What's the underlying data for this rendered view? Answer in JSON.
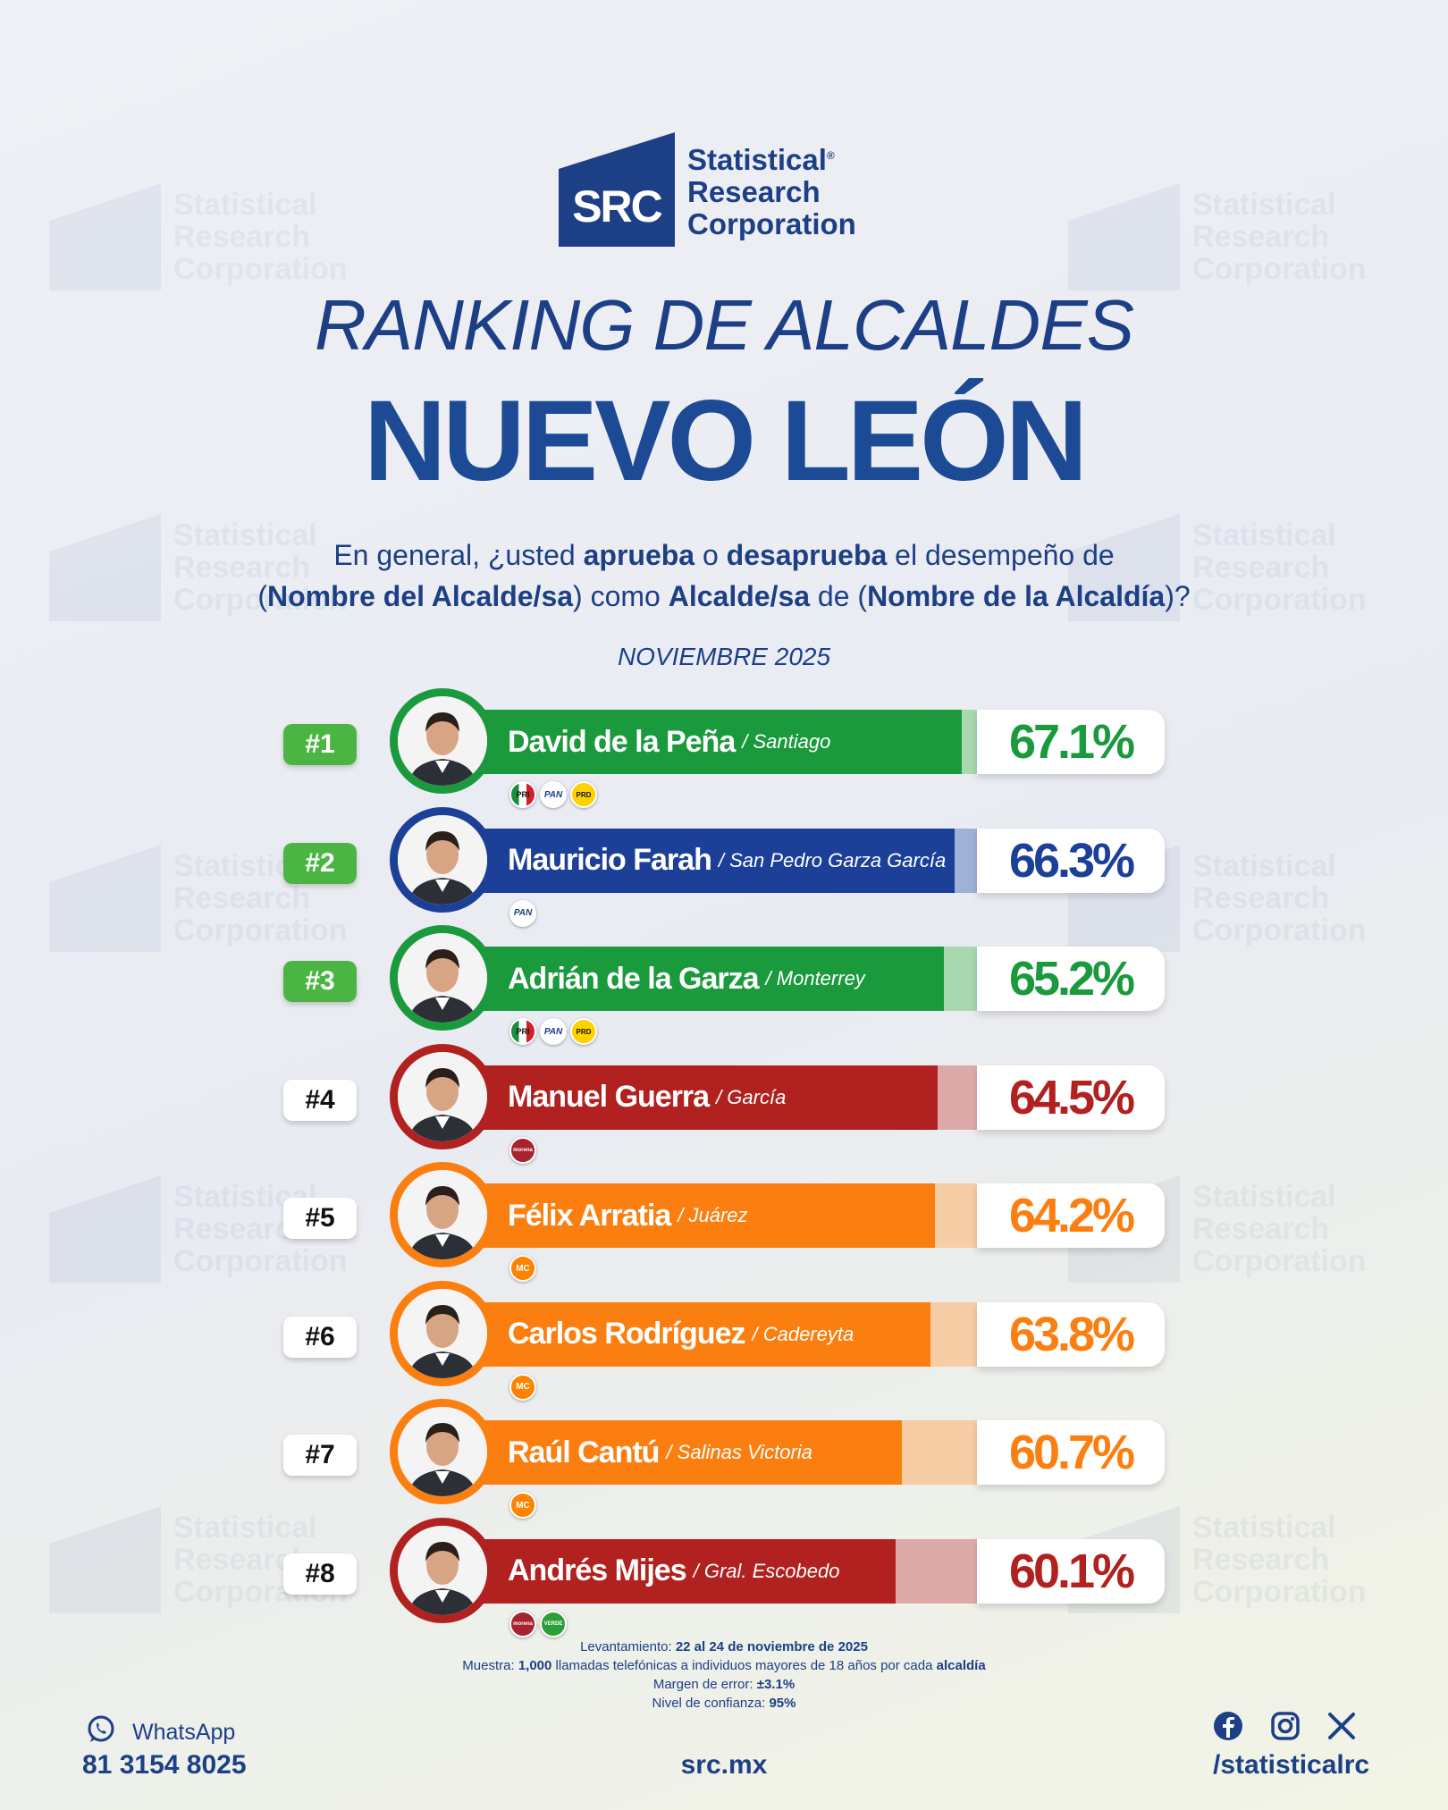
{
  "brand": {
    "mark": "SRC",
    "line1": "Statistical",
    "line2": "Research",
    "line3": "Corporation",
    "reg": "®"
  },
  "title": "RANKING DE ALCALDES",
  "subtitle": "NUEVO LEÓN",
  "question": {
    "p1": "En general, ¿usted ",
    "b1": "aprueba",
    "p2": " o ",
    "b2": "desaprueba",
    "p3": " el desempeño de",
    "p4": "(",
    "b3": "Nombre del Alcalde/sa",
    "p5": ") como ",
    "b4": "Alcalde/sa",
    "p6": " de (",
    "b5": "Nombre de la Alcaldía",
    "p7": ")?"
  },
  "period": "NOVIEMBRE 2025",
  "chart_data": {
    "type": "bar",
    "title": "RANKING DE ALCALDES NUEVO LEÓN",
    "subtitle": "NOVIEMBRE 2025",
    "unit": "%",
    "ylim": [
      0,
      100
    ],
    "entries": [
      {
        "rank": "#1",
        "name": "David de la Peña",
        "place": "/ Santiago",
        "value": 67.1,
        "label": "67.1%",
        "color": "#1a9a3c",
        "light": "#a8d8b0",
        "party_tag": "PRI-PAN-PRD",
        "badge_bg": "#4bb543",
        "badge_fg": "#ffffff",
        "parties": [
          {
            "code": "pri",
            "label": "PRI"
          },
          {
            "code": "pan",
            "label": "PAN"
          },
          {
            "code": "prd",
            "label": "PRD"
          }
        ]
      },
      {
        "rank": "#2",
        "name": "Mauricio Farah",
        "place": "/ San Pedro Garza García",
        "value": 66.3,
        "label": "66.3%",
        "color": "#1c3f97",
        "light": "#9fb1d6",
        "party_tag": "PAN",
        "badge_bg": "#4bb543",
        "badge_fg": "#ffffff",
        "parties": [
          {
            "code": "pan",
            "label": "PAN"
          }
        ]
      },
      {
        "rank": "#3",
        "name": "Adrián de la Garza",
        "place": "/ Monterrey",
        "value": 65.2,
        "label": "65.2%",
        "color": "#1a9a3c",
        "light": "#a8d8b0",
        "party_tag": "PRI-PAN-PRD",
        "badge_bg": "#4bb543",
        "badge_fg": "#ffffff",
        "parties": [
          {
            "code": "pri",
            "label": "PRI"
          },
          {
            "code": "pan",
            "label": "PAN"
          },
          {
            "code": "prd",
            "label": "PRD"
          }
        ]
      },
      {
        "rank": "#4",
        "name": "Manuel Guerra",
        "place": "/ García",
        "value": 64.5,
        "label": "64.5%",
        "color": "#b0211f",
        "light": "#deaaa9",
        "party_tag": "MORENA",
        "badge_bg": "#ffffff",
        "badge_fg": "#111111",
        "parties": [
          {
            "code": "morena",
            "label": "morena"
          }
        ]
      },
      {
        "rank": "#5",
        "name": "Félix Arratia",
        "place": "/ Juárez",
        "value": 64.2,
        "label": "64.2%",
        "color": "#fb7f10",
        "light": "#f6cda4",
        "party_tag": "MC",
        "badge_bg": "#ffffff",
        "badge_fg": "#111111",
        "parties": [
          {
            "code": "mc",
            "label": "MC"
          }
        ]
      },
      {
        "rank": "#6",
        "name": "Carlos Rodríguez",
        "place": "/ Cadereyta",
        "value": 63.8,
        "label": "63.8%",
        "color": "#fb7f10",
        "light": "#f6cda4",
        "party_tag": "MC",
        "badge_bg": "#ffffff",
        "badge_fg": "#111111",
        "parties": [
          {
            "code": "mc",
            "label": "MC"
          }
        ]
      },
      {
        "rank": "#7",
        "name": "Raúl Cantú",
        "place": "/ Salinas Victoria",
        "value": 60.7,
        "label": "60.7%",
        "color": "#fb7f10",
        "light": "#f6cda4",
        "party_tag": "MC",
        "badge_bg": "#ffffff",
        "badge_fg": "#111111",
        "parties": [
          {
            "code": "mc",
            "label": "MC"
          }
        ]
      },
      {
        "rank": "#8",
        "name": "Andrés Mijes",
        "place": "/ Gral. Escobedo",
        "value": 60.1,
        "label": "60.1%",
        "color": "#b0211f",
        "light": "#deaaa9",
        "party_tag": "MORENA-VERDE",
        "badge_bg": "#ffffff",
        "badge_fg": "#111111",
        "parties": [
          {
            "code": "morena",
            "label": "morena"
          },
          {
            "code": "verde",
            "label": "VERDE"
          }
        ]
      }
    ]
  },
  "notes": {
    "l1a": "Levantamiento: ",
    "l1b": "22 al 24 de noviembre de 2025",
    "l2a": "Muestra: ",
    "l2b": "1,000",
    "l2c": " llamadas telefónicas a individuos mayores de 18 años por cada ",
    "l2d": "alcaldía",
    "l3a": "Margen de error: ",
    "l3b": "±3.1%",
    "l4a": "Nivel de confianza: ",
    "l4b": "95%"
  },
  "footer": {
    "whatsapp_label": "WhatsApp",
    "phone": "81 3154 8025",
    "site": "src.mx",
    "handle": "/statisticalrc"
  },
  "colors": {
    "primary": "#1c3f86"
  }
}
